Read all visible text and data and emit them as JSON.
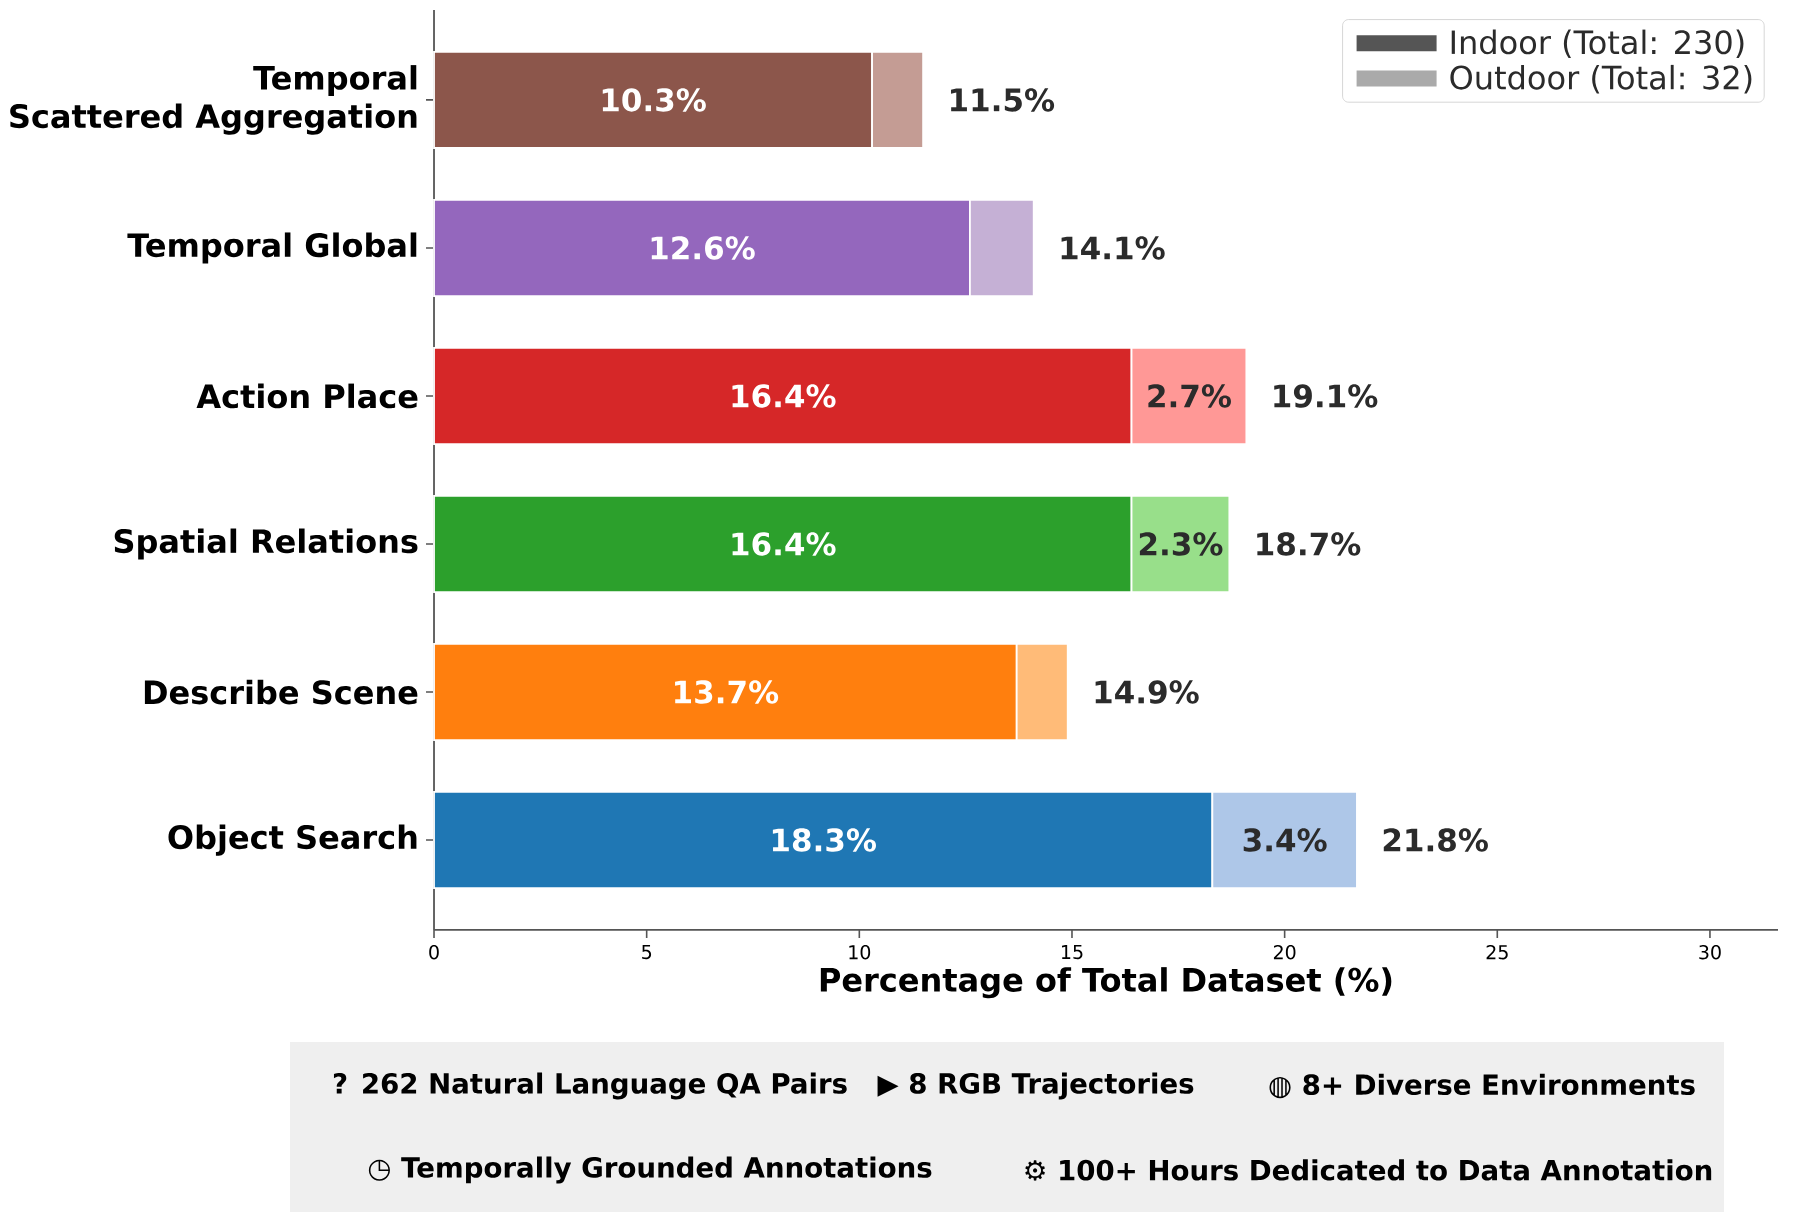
{
  "chart_data": {
    "type": "bar",
    "orientation": "horizontal",
    "stacked": true,
    "categories": [
      "Temporal\nScattered Aggregation",
      "Temporal Global",
      "Action Place",
      "Spatial Relations",
      "Describe Scene",
      "Object Search"
    ],
    "series": [
      {
        "name": "Indoor (Total: 230)",
        "color": "#555555",
        "colors": [
          "#8c564b",
          "#9467bd",
          "#d62728",
          "#2ca02c",
          "#ff7f0e",
          "#1f77b4"
        ],
        "values": [
          10.3,
          12.6,
          16.4,
          16.4,
          13.7,
          18.3
        ],
        "value_labels": [
          "10.3%",
          "12.6%",
          "16.4%",
          "16.4%",
          "13.7%",
          "18.3%"
        ]
      },
      {
        "name": "Outdoor (Total: 32)",
        "color": "#aaaaaa",
        "colors": [
          "#c49c94",
          "#c5b0d5",
          "#ff9896",
          "#98df8a",
          "#ffbb78",
          "#aec7e8"
        ],
        "values": [
          1.2,
          1.5,
          2.7,
          2.3,
          1.2,
          3.4
        ],
        "value_labels": [
          null,
          null,
          "2.7%",
          "2.3%",
          null,
          "3.4%"
        ]
      }
    ],
    "totals": [
      "11.5%",
      "14.1%",
      "19.1%",
      "18.7%",
      "14.9%",
      "21.8%"
    ],
    "xlabel": "Percentage of Total Dataset (%)",
    "xlim": [
      0,
      31.6
    ],
    "xticks": [
      0,
      5,
      10,
      15,
      20,
      25,
      30
    ],
    "legend": "top right",
    "annotations": [
      "? 262 Natural Language QA Pairs",
      "▶ 8 RGB Trajectories",
      "◍ 8+ Diverse Environments",
      "◷ Temporally Grounded Annotations",
      "⚙ 100+ Hours Dedicated to Data Annotation"
    ]
  }
}
